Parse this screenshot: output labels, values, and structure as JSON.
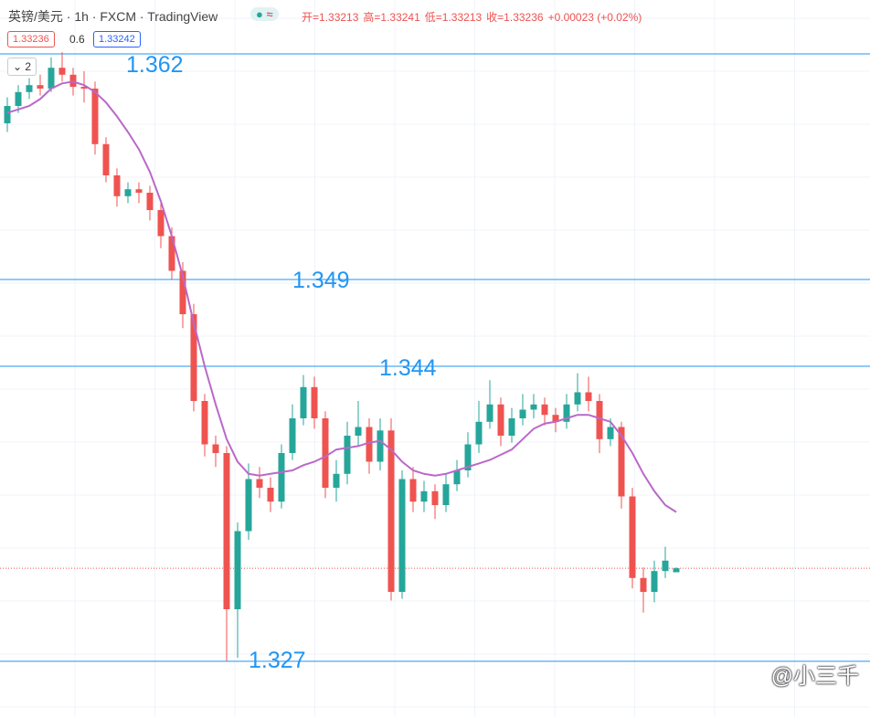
{
  "toolbar": {
    "symbol": "英镑/美元 · 1h · FXCM · TradingView",
    "ohlc": [
      "开=1.33213",
      "高=1.33241",
      "低=1.33213",
      "收=1.33236",
      "+0.00023 (+0.02%)"
    ],
    "bid": "1.33236",
    "spread": "0.6",
    "ask": "1.33242",
    "indicator_count": "2"
  },
  "watermark": "@小三千",
  "chart_data": {
    "type": "candlestick",
    "up_color": "#26a69a",
    "down_color": "#ef5350",
    "level_color": "#2196f3",
    "levels": [
      1.362,
      1.349,
      1.344,
      1.327
    ],
    "last_price": 1.33236,
    "candles": [
      [
        1.358,
        1.3595,
        1.3575,
        1.359
      ],
      [
        1.359,
        1.3602,
        1.3586,
        1.3598
      ],
      [
        1.3598,
        1.3606,
        1.3594,
        1.3602
      ],
      [
        1.3602,
        1.3608,
        1.3596,
        1.36
      ],
      [
        1.36,
        1.3618,
        1.3598,
        1.3612
      ],
      [
        1.3612,
        1.3621,
        1.3604,
        1.3608
      ],
      [
        1.3608,
        1.3612,
        1.3596,
        1.3601
      ],
      [
        1.3601,
        1.361,
        1.3592,
        1.36
      ],
      [
        1.36,
        1.3604,
        1.3562,
        1.3568
      ],
      [
        1.3568,
        1.3572,
        1.3546,
        1.355
      ],
      [
        1.355,
        1.3554,
        1.3532,
        1.3538
      ],
      [
        1.3538,
        1.3546,
        1.3534,
        1.3542
      ],
      [
        1.3542,
        1.3546,
        1.3534,
        1.354
      ],
      [
        1.354,
        1.3544,
        1.3524,
        1.353
      ],
      [
        1.353,
        1.3534,
        1.3508,
        1.3515
      ],
      [
        1.3515,
        1.352,
        1.349,
        1.3495
      ],
      [
        1.3495,
        1.35,
        1.3462,
        1.347
      ],
      [
        1.347,
        1.3476,
        1.3414,
        1.342
      ],
      [
        1.342,
        1.3424,
        1.3388,
        1.3395
      ],
      [
        1.3395,
        1.34,
        1.3382,
        1.339
      ],
      [
        1.339,
        1.3394,
        1.327,
        1.33
      ],
      [
        1.33,
        1.335,
        1.3272,
        1.3345
      ],
      [
        1.3345,
        1.3384,
        1.334,
        1.3375
      ],
      [
        1.3375,
        1.3382,
        1.3364,
        1.337
      ],
      [
        1.337,
        1.3376,
        1.3356,
        1.3362
      ],
      [
        1.3362,
        1.3395,
        1.3358,
        1.339
      ],
      [
        1.339,
        1.3418,
        1.3386,
        1.341
      ],
      [
        1.341,
        1.3435,
        1.3406,
        1.3428
      ],
      [
        1.3428,
        1.3434,
        1.3404,
        1.341
      ],
      [
        1.341,
        1.3414,
        1.3364,
        1.337
      ],
      [
        1.337,
        1.3386,
        1.3362,
        1.3378
      ],
      [
        1.3378,
        1.3408,
        1.3372,
        1.34
      ],
      [
        1.34,
        1.342,
        1.3394,
        1.3405
      ],
      [
        1.3405,
        1.341,
        1.3378,
        1.3385
      ],
      [
        1.3385,
        1.341,
        1.338,
        1.3403
      ],
      [
        1.3403,
        1.341,
        1.3305,
        1.331
      ],
      [
        1.331,
        1.338,
        1.3306,
        1.3375
      ],
      [
        1.3375,
        1.3382,
        1.3356,
        1.3362
      ],
      [
        1.3362,
        1.3374,
        1.3356,
        1.3368
      ],
      [
        1.3368,
        1.3372,
        1.3352,
        1.336
      ],
      [
        1.336,
        1.3378,
        1.3356,
        1.3372
      ],
      [
        1.3372,
        1.3386,
        1.3368,
        1.338
      ],
      [
        1.338,
        1.3402,
        1.3376,
        1.3395
      ],
      [
        1.3395,
        1.342,
        1.339,
        1.3408
      ],
      [
        1.3408,
        1.3432,
        1.3404,
        1.3418
      ],
      [
        1.3418,
        1.3422,
        1.3394,
        1.34
      ],
      [
        1.34,
        1.3416,
        1.3396,
        1.341
      ],
      [
        1.341,
        1.3424,
        1.3406,
        1.3415
      ],
      [
        1.3415,
        1.3424,
        1.341,
        1.3418
      ],
      [
        1.3418,
        1.3422,
        1.3406,
        1.3412
      ],
      [
        1.3412,
        1.3416,
        1.3402,
        1.3408
      ],
      [
        1.3408,
        1.3424,
        1.3404,
        1.3418
      ],
      [
        1.3418,
        1.3436,
        1.3414,
        1.3425
      ],
      [
        1.3425,
        1.3434,
        1.3414,
        1.342
      ],
      [
        1.342,
        1.3424,
        1.339,
        1.3398
      ],
      [
        1.3398,
        1.341,
        1.3394,
        1.3405
      ],
      [
        1.3405,
        1.3408,
        1.3358,
        1.3365
      ],
      [
        1.3365,
        1.337,
        1.3312,
        1.3318
      ],
      [
        1.3318,
        1.3324,
        1.3298,
        1.331
      ],
      [
        1.331,
        1.3328,
        1.3304,
        1.3322
      ],
      [
        1.3322,
        1.3336,
        1.3318,
        1.3328
      ],
      [
        1.33213,
        1.33241,
        1.33213,
        1.33236
      ]
    ],
    "ma": {
      "color": "#ba68c8",
      "values": [
        1.3586,
        1.3588,
        1.359,
        1.3594,
        1.36,
        1.3603,
        1.3604,
        1.3602,
        1.3598,
        1.3592,
        1.3584,
        1.3575,
        1.3565,
        1.3552,
        1.3535,
        1.3515,
        1.3492,
        1.3465,
        1.344,
        1.3418,
        1.3398,
        1.3385,
        1.3378,
        1.3377,
        1.3378,
        1.3379,
        1.338,
        1.3383,
        1.3385,
        1.3388,
        1.3392,
        1.3393,
        1.3394,
        1.3396,
        1.3397,
        1.3392,
        1.3385,
        1.338,
        1.3378,
        1.3377,
        1.3378,
        1.338,
        1.3382,
        1.3384,
        1.3386,
        1.3389,
        1.3392,
        1.3398,
        1.3404,
        1.3407,
        1.3408,
        1.341,
        1.3412,
        1.3412,
        1.341,
        1.3408,
        1.34,
        1.339,
        1.3378,
        1.3368,
        1.336,
        1.3356
      ]
    }
  }
}
